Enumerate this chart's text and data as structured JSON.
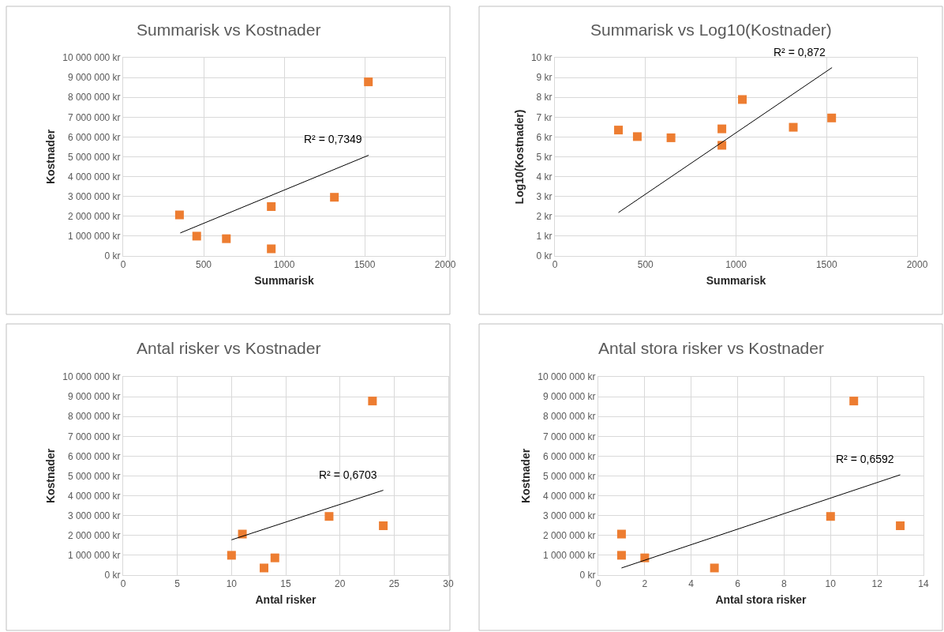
{
  "chart_data": [
    {
      "type": "scatter",
      "title": "Summarisk vs Kostnader",
      "xlabel": "Summarisk",
      "ylabel": "Kostnader",
      "grid": true,
      "xlim": [
        0,
        2000
      ],
      "xticks": [
        0,
        500,
        1000,
        1500,
        2000
      ],
      "ylim": [
        0,
        10000000
      ],
      "yticks": [
        {
          "value": 0,
          "label": "0 kr"
        },
        {
          "value": 1000000,
          "label": "1 000 000 kr"
        },
        {
          "value": 2000000,
          "label": "2 000 000 kr"
        },
        {
          "value": 3000000,
          "label": "3 000 000 kr"
        },
        {
          "value": 4000000,
          "label": "4 000 000 kr"
        },
        {
          "value": 5000000,
          "label": "5 000 000 kr"
        },
        {
          "value": 6000000,
          "label": "6 000 000 kr"
        },
        {
          "value": 7000000,
          "label": "7 000 000 kr"
        },
        {
          "value": 8000000,
          "label": "8 000 000 kr"
        },
        {
          "value": 9000000,
          "label": "9 000 000 kr"
        },
        {
          "value": 10000000,
          "label": "10 000 000 kr"
        }
      ],
      "series": [
        {
          "marker": "square",
          "color": "#ed7d31",
          "x": [
            350,
            457,
            641,
            920,
            920,
            1312,
            1523
          ],
          "values": [
            2070000,
            1000000,
            870000,
            2490000,
            360000,
            2960000,
            8780000
          ]
        },
        {
          "type": "line",
          "marker": "none",
          "color": "#000000",
          "x": [
            355,
            1525
          ],
          "values": [
            1160000,
            5080000
          ]
        }
      ],
      "annotations": [
        "R² = 0,7349"
      ]
    },
    {
      "type": "scatter",
      "title": "Summarisk vs Log10(Kostnader)",
      "xlabel": "Summarisk",
      "ylabel": "Log10(Kostnader)",
      "grid": true,
      "xlim": [
        0,
        2000
      ],
      "xticks": [
        0,
        500,
        1000,
        1500,
        2000
      ],
      "ylim": [
        0,
        10
      ],
      "yticks": [
        {
          "value": 0,
          "label": "0 kr"
        },
        {
          "value": 1,
          "label": "1 kr"
        },
        {
          "value": 2,
          "label": "2 kr"
        },
        {
          "value": 3,
          "label": "3 kr"
        },
        {
          "value": 4,
          "label": "4 kr"
        },
        {
          "value": 5,
          "label": "5 kr"
        },
        {
          "value": 6,
          "label": "6 kr"
        },
        {
          "value": 7,
          "label": "7 kr"
        },
        {
          "value": 8,
          "label": "8 kr"
        },
        {
          "value": 9,
          "label": "9 kr"
        },
        {
          "value": 10,
          "label": "10 kr"
        }
      ],
      "series": [
        {
          "marker": "square",
          "color": "#ed7d31",
          "x": [
            351,
            455,
            641,
            922,
            922,
            1035,
            1316,
            1528
          ],
          "values": [
            6.35,
            6.02,
            5.96,
            6.41,
            5.58,
            7.89,
            6.49,
            6.96
          ]
        },
        {
          "type": "line",
          "marker": "none",
          "color": "#000000",
          "x": [
            351,
            1530
          ],
          "values": [
            2.19,
            9.5
          ]
        }
      ],
      "annotations": [
        "R² = 0,872"
      ]
    },
    {
      "type": "scatter",
      "title": "Antal risker vs Kostnader",
      "xlabel": "Antal risker",
      "ylabel": "Kostnader",
      "grid": true,
      "xlim": [
        0,
        30
      ],
      "xticks": [
        0,
        5,
        10,
        15,
        20,
        25,
        30
      ],
      "ylim": [
        0,
        10000000
      ],
      "yticks": [
        {
          "value": 0,
          "label": "0 kr"
        },
        {
          "value": 1000000,
          "label": "1 000 000 kr"
        },
        {
          "value": 2000000,
          "label": "2 000 000 kr"
        },
        {
          "value": 3000000,
          "label": "3 000 000 kr"
        },
        {
          "value": 4000000,
          "label": "4 000 000 kr"
        },
        {
          "value": 5000000,
          "label": "5 000 000 kr"
        },
        {
          "value": 6000000,
          "label": "6 000 000 kr"
        },
        {
          "value": 7000000,
          "label": "7 000 000 kr"
        },
        {
          "value": 8000000,
          "label": "8 000 000 kr"
        },
        {
          "value": 9000000,
          "label": "9 000 000 kr"
        },
        {
          "value": 10000000,
          "label": "10 000 000 kr"
        }
      ],
      "series": [
        {
          "marker": "square",
          "color": "#ed7d31",
          "x": [
            10,
            11,
            13,
            14,
            19,
            23,
            24
          ],
          "values": [
            1000000,
            2070000,
            360000,
            870000,
            2960000,
            8780000,
            2490000
          ]
        },
        {
          "type": "line",
          "marker": "none",
          "color": "#000000",
          "x": [
            10,
            24
          ],
          "values": [
            1780000,
            4280000
          ]
        }
      ],
      "annotations": [
        "R² = 0,6703"
      ]
    },
    {
      "type": "scatter",
      "title": "Antal stora risker vs Kostnader",
      "xlabel": "Antal stora risker",
      "ylabel": "Kostnader",
      "grid": true,
      "xlim": [
        0,
        14
      ],
      "xticks": [
        0,
        2,
        4,
        6,
        8,
        10,
        12,
        14
      ],
      "ylim": [
        0,
        10000000
      ],
      "yticks": [
        {
          "value": 0,
          "label": "0 kr"
        },
        {
          "value": 1000000,
          "label": "1 000 000 kr"
        },
        {
          "value": 2000000,
          "label": "2 000 000 kr"
        },
        {
          "value": 3000000,
          "label": "3 000 000 kr"
        },
        {
          "value": 4000000,
          "label": "4 000 000 kr"
        },
        {
          "value": 5000000,
          "label": "5 000 000 kr"
        },
        {
          "value": 6000000,
          "label": "6 000 000 kr"
        },
        {
          "value": 7000000,
          "label": "7 000 000 kr"
        },
        {
          "value": 8000000,
          "label": "8 000 000 kr"
        },
        {
          "value": 9000000,
          "label": "9 000 000 kr"
        },
        {
          "value": 10000000,
          "label": "10 000 000 kr"
        }
      ],
      "series": [
        {
          "marker": "square",
          "color": "#ed7d31",
          "x": [
            1,
            1,
            2,
            5,
            10,
            11,
            13
          ],
          "values": [
            2070000,
            1000000,
            870000,
            360000,
            2960000,
            8780000,
            2490000
          ]
        },
        {
          "type": "line",
          "marker": "none",
          "color": "#000000",
          "x": [
            1,
            13
          ],
          "values": [
            360000,
            5060000
          ]
        }
      ],
      "annotations": [
        "R² = 0,6592"
      ]
    }
  ]
}
